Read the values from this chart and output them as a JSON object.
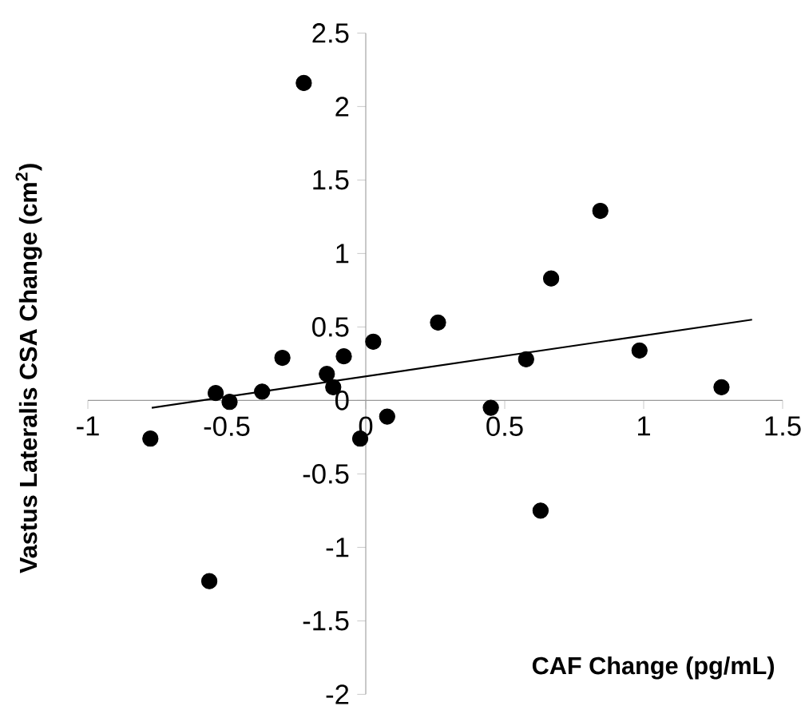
{
  "chart_data": {
    "type": "scatter",
    "xlabel": "CAF Change (pg/mL)",
    "ylabel": "Vastus Lateralis CSA Change (cm$^{2}$)",
    "xlim": [
      -1,
      1.5
    ],
    "ylim": [
      -2,
      2.5
    ],
    "xticks": [
      -1,
      -0.5,
      0,
      0.5,
      1,
      1.5
    ],
    "yticks": [
      -2,
      -1.5,
      -1,
      -0.5,
      0,
      0.5,
      1,
      1.5,
      2,
      2.5
    ],
    "grid": false,
    "series": [
      {
        "color": "#000000",
        "marker": "circle",
        "x": [
          -0.223,
          0.844,
          0.667,
          0.26,
          0.027,
          -0.079,
          -0.3,
          -0.14,
          -0.117,
          -0.373,
          -0.54,
          -0.49,
          0.577,
          0.985,
          1.28,
          0.45,
          0.077,
          -0.02,
          -0.775,
          0.629,
          -0.563
        ],
        "values": [
          2.16,
          1.29,
          0.83,
          0.53,
          0.4,
          0.3,
          0.29,
          0.18,
          0.09,
          0.06,
          0.05,
          -0.01,
          0.28,
          0.34,
          0.09,
          -0.05,
          -0.11,
          -0.26,
          -0.26,
          -0.75,
          -1.23
        ]
      },
      {
        "type": "line",
        "color": "#000000",
        "line_style": "solid",
        "x": [
          -0.77,
          1.39
        ],
        "values": [
          -0.05,
          0.55
        ]
      }
    ]
  }
}
